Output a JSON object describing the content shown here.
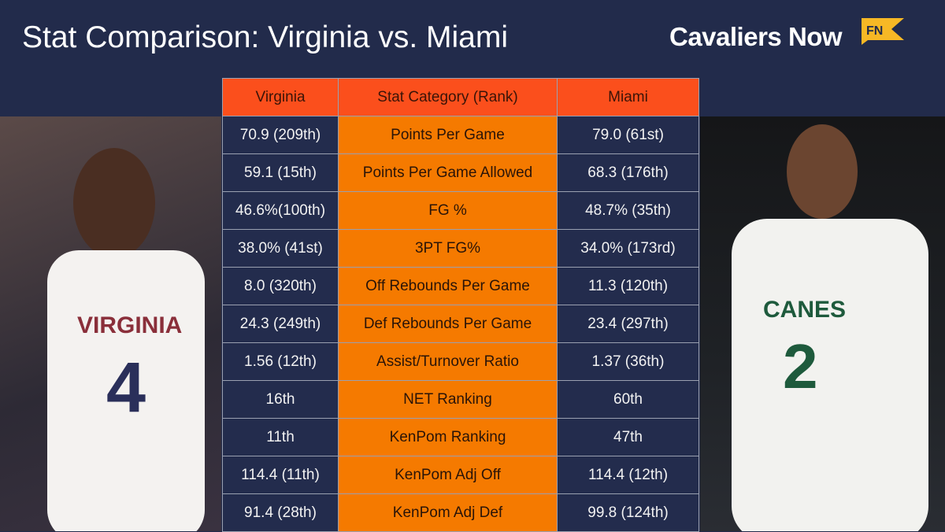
{
  "header": {
    "title": "Stat Comparison: Virginia vs. Miami",
    "brand": "Cavaliers Now",
    "brand_badge": "FN"
  },
  "table": {
    "columns": [
      "Virginia",
      "Stat Category (Rank)",
      "Miami"
    ],
    "rows": [
      [
        "70.9 (209th)",
        "Points Per Game",
        "79.0 (61st)"
      ],
      [
        "59.1 (15th)",
        "Points Per Game Allowed",
        "68.3 (176th)"
      ],
      [
        "46.6%(100th)",
        "FG %",
        "48.7% (35th)"
      ],
      [
        "38.0% (41st)",
        "3PT FG%",
        "34.0% (173rd)"
      ],
      [
        "8.0 (320th)",
        "Off Rebounds Per Game",
        "11.3 (120th)"
      ],
      [
        "24.3 (249th)",
        "Def Rebounds Per Game",
        "23.4 (297th)"
      ],
      [
        "1.56 (12th)",
        "Assist/Turnover Ratio",
        "1.37 (36th)"
      ],
      [
        "16th",
        "NET Ranking",
        "60th"
      ],
      [
        "11th",
        "KenPom Ranking",
        "47th"
      ],
      [
        "114.4 (11th)",
        "KenPom Adj Off",
        "114.4 (12th)"
      ],
      [
        "91.4 (28th)",
        "KenPom Adj Def",
        "99.8 (124th)"
      ]
    ]
  },
  "photos": {
    "left_jersey": "VIRGINIA",
    "left_number": "4",
    "right_jersey": "CANES",
    "right_number": "2"
  },
  "colors": {
    "bg": "#222b4b",
    "header": "#fb4f1c",
    "category": "#f57a00",
    "brand_badge": "#f7b825"
  }
}
